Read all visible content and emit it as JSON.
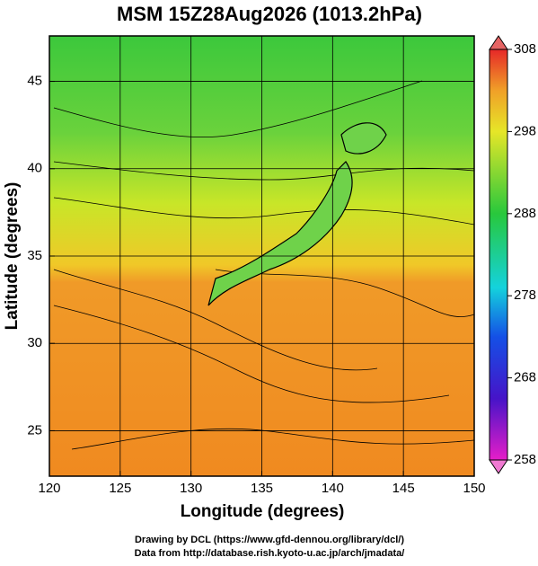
{
  "chart_data": {
    "type": "map",
    "title": "MSM 15Z28Aug2026 (1013.2hPa)",
    "x_label": "Longitude (degrees)",
    "y_label": "Latitude  (degrees)",
    "xlim": [
      120,
      150
    ],
    "xticks": [
      120,
      125,
      130,
      135,
      140,
      145,
      150
    ],
    "ylim": [
      22.4,
      47.6
    ],
    "yticks": [
      25,
      30,
      35,
      40,
      45
    ],
    "grid": true,
    "colorbar": {
      "lim": [
        258,
        308
      ],
      "ticks": [
        258,
        268,
        278,
        288,
        298,
        308
      ]
    },
    "credits": [
      "Drawing by DCL (https://www.gfd-dennou.org/library/dcl/)",
      "Data from http://database.rish.kyoto-u.ac.jp/arch/jmadata/"
    ]
  }
}
